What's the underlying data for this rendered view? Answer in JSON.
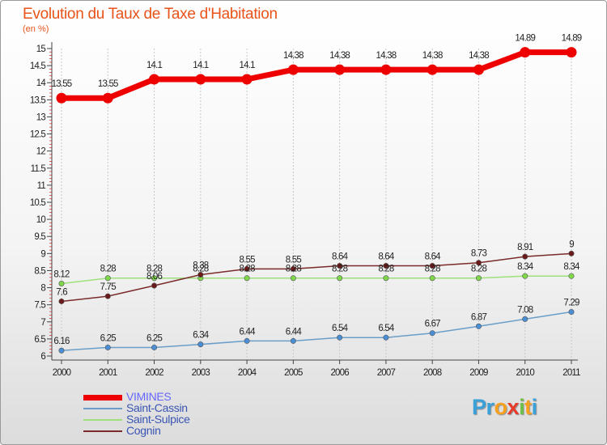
{
  "chart_data": {
    "type": "line",
    "title": "Evolution du Taux de Taxe d'Habitation",
    "subtitle": "(en %)",
    "x": [
      "2000",
      "2001",
      "2002",
      "2003",
      "2004",
      "2005",
      "2006",
      "2007",
      "2008",
      "2009",
      "2010",
      "2011"
    ],
    "ylim": [
      6,
      15
    ],
    "yticks": [
      "6",
      "6.5",
      "7",
      "7.5",
      "8",
      "8.5",
      "9",
      "9.5",
      "10",
      "10.5",
      "11",
      "11.5",
      "12",
      "12.5",
      "13",
      "13.5",
      "14",
      "14.5",
      "15"
    ],
    "series": [
      {
        "name": "VIMINES",
        "color": "#ee0000",
        "thick": true,
        "values": [
          13.55,
          13.55,
          14.1,
          14.1,
          14.1,
          14.38,
          14.38,
          14.38,
          14.38,
          14.38,
          14.89,
          14.89
        ],
        "labels": [
          "13.55",
          "13.55",
          "14.1",
          "14.1",
          "14.1",
          "14.38",
          "14.38",
          "14.38",
          "14.38",
          "14.38",
          "14.89",
          "14.89"
        ]
      },
      {
        "name": "Saint-Cassin",
        "color": "#6a9ec8",
        "marker": "#4a8fd6",
        "values": [
          6.16,
          6.25,
          6.25,
          6.34,
          6.44,
          6.44,
          6.54,
          6.54,
          6.67,
          6.87,
          7.08,
          7.29
        ],
        "labels": [
          "6.16",
          "6.25",
          "6.25",
          "6.34",
          "6.44",
          "6.44",
          "6.54",
          "6.54",
          "6.67",
          "6.87",
          "7.08",
          "7.29"
        ]
      },
      {
        "name": "Saint-Sulpice",
        "color": "#9ee07a",
        "marker": "#7fd84a",
        "values": [
          8.12,
          8.28,
          8.28,
          8.28,
          8.28,
          8.28,
          8.28,
          8.28,
          8.28,
          8.28,
          8.34,
          8.34
        ],
        "labels": [
          "8.12",
          "8.28",
          "8.28",
          "8.28",
          "8.28",
          "8.28",
          "8.28",
          "8.28",
          "8.28",
          "8.28",
          "8.34",
          "8.34"
        ]
      },
      {
        "name": "Cognin",
        "color": "#7a2a2a",
        "marker": "#6b1a1a",
        "values": [
          7.6,
          7.75,
          8.06,
          8.38,
          8.55,
          8.55,
          8.64,
          8.64,
          8.64,
          8.73,
          8.91,
          9
        ],
        "labels": [
          "7.6",
          "7.75",
          "8.06",
          "8.38",
          "8.55",
          "8.55",
          "8.64",
          "8.64",
          "8.64",
          "8.73",
          "8.91",
          "9"
        ]
      }
    ]
  },
  "legend": [
    {
      "label": "VIMINES",
      "color": "#ee0000",
      "text_color": "#6666ff"
    },
    {
      "label": "Saint-Cassin",
      "color": "#6a9ec8",
      "text_color": "#3a55b4"
    },
    {
      "label": "Saint-Sulpice",
      "color": "#9ee07a",
      "text_color": "#3a55b4"
    },
    {
      "label": "Cognin",
      "color": "#7a2a2a",
      "text_color": "#3a55b4"
    }
  ],
  "logo": {
    "letters": [
      "P",
      "r",
      "o",
      "x",
      "i",
      "t",
      "i"
    ],
    "colors": [
      "#3aa0d8",
      "#3aa0d8",
      "#f5a01e",
      "#e83a2a",
      "#6cc04a",
      "#f5a01e",
      "#3aa0d8"
    ]
  }
}
